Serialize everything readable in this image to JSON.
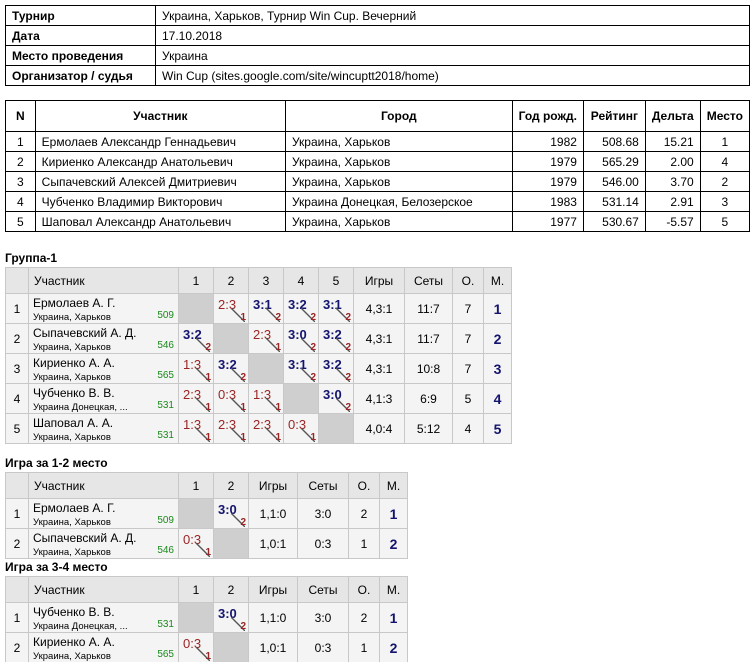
{
  "info": {
    "rows": [
      [
        "Турнир",
        "Украина, Харьков, Турнир Win Cup. Вечерний"
      ],
      [
        "Дата",
        "17.10.2018"
      ],
      [
        "Место проведения",
        "Украина"
      ],
      [
        "Организатор / судья",
        "Win Cup (sites.google.com/site/wincuptt2018/home)"
      ]
    ]
  },
  "participants": {
    "header": [
      "N",
      "Участник",
      "Город",
      "Год рожд.",
      "Рейтинг",
      "Дельта",
      "Место"
    ],
    "rows": [
      [
        1,
        "Ермолаев Александр Геннадьевич",
        "Украина, Харьков",
        1982,
        "508.68",
        "15.21",
        1
      ],
      [
        2,
        "Кириенко Александр Анатольевич",
        "Украина, Харьков",
        1979,
        "565.29",
        "2.00",
        4
      ],
      [
        3,
        "Сыпачевский Алексей Дмитриевич",
        "Украина, Харьков",
        1979,
        "546.00",
        "3.70",
        2
      ],
      [
        4,
        "Чубченко Владимир Викторович",
        "Украина Донецкая, Белозерское",
        1983,
        "531.14",
        "2.91",
        3
      ],
      [
        5,
        "Шаповал Александр Анатольевич",
        "Украина, Харьков",
        1977,
        "530.67",
        "-5.57",
        5
      ]
    ]
  },
  "groups": [
    {
      "title": "Группа-1",
      "header": [
        "Участник",
        "1",
        "2",
        "3",
        "4",
        "5",
        "Игры",
        "Сеты",
        "О.",
        "М."
      ],
      "rows": [
        {
          "n": 1,
          "name": "Ермолаев А. Г.",
          "city": "Украина, Харьков",
          "rating": 509,
          "cells": [
            null,
            {
              "score": "2:3",
              "pts": 1
            },
            {
              "score": "3:1",
              "pts": 2
            },
            {
              "score": "3:2",
              "pts": 2
            },
            {
              "score": "3:1",
              "pts": 2
            }
          ],
          "games": "4,3:1",
          "sets": "11:7",
          "points": 7,
          "place": 1
        },
        {
          "n": 2,
          "name": "Сыпачевский А. Д.",
          "city": "Украина, Харьков",
          "rating": 546,
          "cells": [
            {
              "score": "3:2",
              "pts": 2
            },
            null,
            {
              "score": "2:3",
              "pts": 1
            },
            {
              "score": "3:0",
              "pts": 2
            },
            {
              "score": "3:2",
              "pts": 2
            }
          ],
          "games": "4,3:1",
          "sets": "11:7",
          "points": 7,
          "place": 2
        },
        {
          "n": 3,
          "name": "Кириенко А. А.",
          "city": "Украина, Харьков",
          "rating": 565,
          "cells": [
            {
              "score": "1:3",
              "pts": 1
            },
            {
              "score": "3:2",
              "pts": 2
            },
            null,
            {
              "score": "3:1",
              "pts": 2
            },
            {
              "score": "3:2",
              "pts": 2
            }
          ],
          "games": "4,3:1",
          "sets": "10:8",
          "points": 7,
          "place": 3
        },
        {
          "n": 4,
          "name": "Чубченко В. В.",
          "city": "Украина Донецкая, ...",
          "rating": 531,
          "cells": [
            {
              "score": "2:3",
              "pts": 1
            },
            {
              "score": "0:3",
              "pts": 1
            },
            {
              "score": "1:3",
              "pts": 1
            },
            null,
            {
              "score": "3:0",
              "pts": 2
            }
          ],
          "games": "4,1:3",
          "sets": "6:9",
          "points": 5,
          "place": 4
        },
        {
          "n": 5,
          "name": "Шаповал А. А.",
          "city": "Украина, Харьков",
          "rating": 531,
          "cells": [
            {
              "score": "1:3",
              "pts": 1
            },
            {
              "score": "2:3",
              "pts": 1
            },
            {
              "score": "2:3",
              "pts": 1
            },
            {
              "score": "0:3",
              "pts": 1
            },
            null
          ],
          "games": "4,0:4",
          "sets": "5:12",
          "points": 4,
          "place": 5
        }
      ]
    },
    {
      "title": "Игра за 1-2 место",
      "header": [
        "Участник",
        "1",
        "2",
        "Игры",
        "Сеты",
        "О.",
        "М."
      ],
      "rows": [
        {
          "n": 1,
          "name": "Ермолаев А. Г.",
          "city": "Украина, Харьков",
          "rating": 509,
          "cells": [
            null,
            {
              "score": "3:0",
              "pts": 2
            }
          ],
          "games": "1,1:0",
          "sets": "3:0",
          "points": 2,
          "place": 1
        },
        {
          "n": 2,
          "name": "Сыпачевский А. Д.",
          "city": "Украина, Харьков",
          "rating": 546,
          "cells": [
            {
              "score": "0:3",
              "pts": 1
            },
            null
          ],
          "games": "1,0:1",
          "sets": "0:3",
          "points": 1,
          "place": 2
        }
      ]
    },
    {
      "title": "Игра за 3-4 место",
      "header": [
        "Участник",
        "1",
        "2",
        "Игры",
        "Сеты",
        "О.",
        "М."
      ],
      "rows": [
        {
          "n": 1,
          "name": "Чубченко В. В.",
          "city": "Украина Донецкая, ...",
          "rating": 531,
          "cells": [
            null,
            {
              "score": "3:0",
              "pts": 2
            }
          ],
          "games": "1,1:0",
          "sets": "3:0",
          "points": 2,
          "place": 1
        },
        {
          "n": 2,
          "name": "Кириенко А. А.",
          "city": "Украина, Харьков",
          "rating": 565,
          "cells": [
            {
              "score": "0:3",
              "pts": 1
            },
            null
          ],
          "games": "1,0:1",
          "sets": "0:3",
          "points": 1,
          "place": 2
        }
      ]
    }
  ]
}
